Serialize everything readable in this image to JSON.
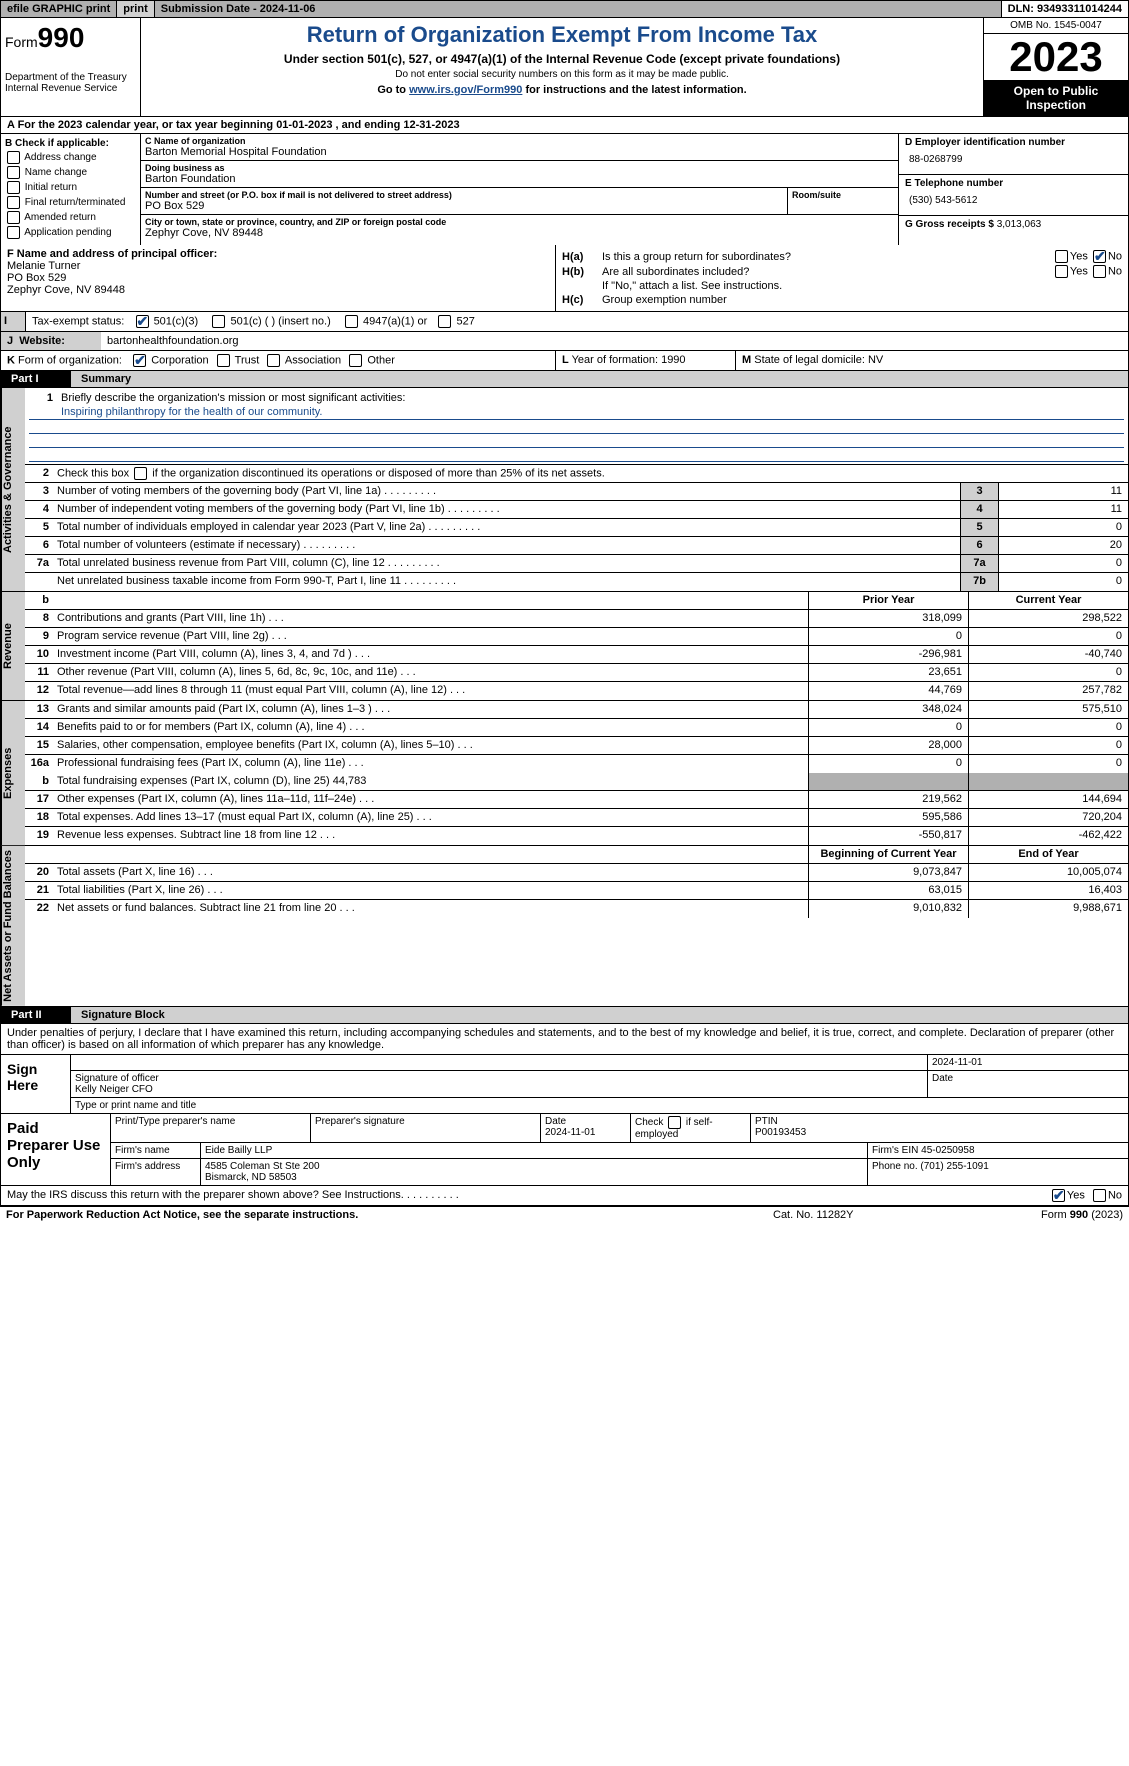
{
  "topbar": {
    "efile": "efile GRAPHIC print",
    "submission": "Submission Date - 2024-11-06",
    "dln": "DLN: 93493311014244"
  },
  "header": {
    "form": "Form",
    "num": "990",
    "title": "Return of Organization Exempt From Income Tax",
    "sub": "Under section 501(c), 527, or 4947(a)(1) of the Internal Revenue Code (except private foundations)",
    "ssn": "Do not enter social security numbers on this form as it may be made public.",
    "goto": "Go to ",
    "gotolink": "www.irs.gov/Form990",
    "goto2": " for instructions and the latest information.",
    "dept": "Department of the Treasury Internal Revenue Service",
    "omb": "OMB No. 1545-0047",
    "year": "2023",
    "open": "Open to Public Inspection"
  },
  "lineA": "A    For the 2023 calendar year, or tax year beginning 01-01-2023    , and ending 12-31-2023",
  "boxB": {
    "label": "B Check if applicable:",
    "opts": [
      "Address change",
      "Name change",
      "Initial return",
      "Final return/terminated",
      "Amended return",
      "Application pending"
    ]
  },
  "boxC": {
    "nameLab": "C Name of organization",
    "name": "Barton Memorial Hospital Foundation",
    "dbaLab": "Doing business as",
    "dba": "Barton Foundation",
    "addrLab": "Number and street (or P.O. box if mail is not delivered to street address)",
    "addr": "PO Box 529",
    "room": "Room/suite",
    "cityLab": "City or town, state or province, country, and ZIP or foreign postal code",
    "city": "Zephyr Cove, NV  89448"
  },
  "boxD": {
    "einLab": "D Employer identification number",
    "ein": "88-0268799",
    "telLab": "E Telephone number",
    "tel": "(530) 543-5612",
    "grossLab": "G Gross receipts $ ",
    "gross": "3,013,063"
  },
  "boxF": {
    "lab": "F  Name and address of principal officer:",
    "name": "Melanie Turner",
    "addr": "PO Box 529",
    "city": "Zephyr Cove, NV  89448"
  },
  "boxH": {
    "ha": "H(a)",
    "haTxt": "Is this a group return for subordinates?",
    "hb": "H(b)",
    "hbTxt": "Are all subordinates included?",
    "hbNote": "If \"No,\" attach a list. See instructions.",
    "hc": "H(c)",
    "hcTxt": "Group exemption number"
  },
  "rowI": {
    "lab": "I",
    "txt": "Tax-exempt status:",
    "o1": "501(c)(3)",
    "o2": "501(c) (  ) (insert no.)",
    "o3": "4947(a)(1) or",
    "o4": "527"
  },
  "rowJ": {
    "lab": "J",
    "txt": "Website:",
    "val": "bartonhealthfoundation.org"
  },
  "rowK": {
    "lab": "K",
    "txt": "Form of organization:",
    "o1": "Corporation",
    "o2": "Trust",
    "o3": "Association",
    "o4": "Other"
  },
  "rowL": {
    "lab": "L",
    "txt": "Year of formation: 1990"
  },
  "rowM": {
    "lab": "M",
    "txt": "State of legal domicile: NV"
  },
  "part1": {
    "lbl": "Part I",
    "ttl": "Summary"
  },
  "gov": {
    "l1": "Briefly describe the organization's mission or most significant activities:",
    "mission": "Inspiring philanthropy for the health of our community.",
    "l2": "Check this box        if the organization discontinued its operations or disposed of more than 25% of its net assets.",
    "l3": "Number of voting members of the governing body (Part VI, line 1a)",
    "l3v": "11",
    "l4": "Number of independent voting members of the governing body (Part VI, line 1b)",
    "l4v": "11",
    "l5": "Total number of individuals employed in calendar year 2023 (Part V, line 2a)",
    "l5v": "0",
    "l6": "Total number of volunteers (estimate if necessary)",
    "l6v": "20",
    "l7a": "Total unrelated business revenue from Part VIII, column (C), line 12",
    "l7av": "0",
    "l7b": "Net unrelated business taxable income from Form 990-T, Part I, line 11",
    "l7bv": "0"
  },
  "revhdr": {
    "prior": "Prior Year",
    "current": "Current Year"
  },
  "rev": [
    {
      "n": "8",
      "t": "Contributions and grants (Part VIII, line 1h)",
      "p": "318,099",
      "c": "298,522"
    },
    {
      "n": "9",
      "t": "Program service revenue (Part VIII, line 2g)",
      "p": "0",
      "c": "0"
    },
    {
      "n": "10",
      "t": "Investment income (Part VIII, column (A), lines 3, 4, and 7d )",
      "p": "-296,981",
      "c": "-40,740"
    },
    {
      "n": "11",
      "t": "Other revenue (Part VIII, column (A), lines 5, 6d, 8c, 9c, 10c, and 11e)",
      "p": "23,651",
      "c": "0"
    },
    {
      "n": "12",
      "t": "Total revenue—add lines 8 through 11 (must equal Part VIII, column (A), line 12)",
      "p": "44,769",
      "c": "257,782"
    }
  ],
  "exp": [
    {
      "n": "13",
      "t": "Grants and similar amounts paid (Part IX, column (A), lines 1–3 )",
      "p": "348,024",
      "c": "575,510"
    },
    {
      "n": "14",
      "t": "Benefits paid to or for members (Part IX, column (A), line 4)",
      "p": "0",
      "c": "0"
    },
    {
      "n": "15",
      "t": "Salaries, other compensation, employee benefits (Part IX, column (A), lines 5–10)",
      "p": "28,000",
      "c": "0"
    },
    {
      "n": "16a",
      "t": "Professional fundraising fees (Part IX, column (A), line 11e)",
      "p": "0",
      "c": "0"
    }
  ],
  "exp16b": {
    "n": "b",
    "t": "Total fundraising expenses (Part IX, column (D), line 25) 44,783"
  },
  "exp2": [
    {
      "n": "17",
      "t": "Other expenses (Part IX, column (A), lines 11a–11d, 11f–24e)",
      "p": "219,562",
      "c": "144,694"
    },
    {
      "n": "18",
      "t": "Total expenses. Add lines 13–17 (must equal Part IX, column (A), line 25)",
      "p": "595,586",
      "c": "720,204"
    },
    {
      "n": "19",
      "t": "Revenue less expenses. Subtract line 18 from line 12",
      "p": "-550,817",
      "c": "-462,422"
    }
  ],
  "nethdr": {
    "begin": "Beginning of Current Year",
    "end": "End of Year"
  },
  "net": [
    {
      "n": "20",
      "t": "Total assets (Part X, line 16)",
      "p": "9,073,847",
      "c": "10,005,074"
    },
    {
      "n": "21",
      "t": "Total liabilities (Part X, line 26)",
      "p": "63,015",
      "c": "16,403"
    },
    {
      "n": "22",
      "t": "Net assets or fund balances. Subtract line 21 from line 20",
      "p": "9,010,832",
      "c": "9,988,671"
    }
  ],
  "part2": {
    "lbl": "Part II",
    "ttl": "Signature Block"
  },
  "perjury": "Under penalties of perjury, I declare that I have examined this return, including accompanying schedules and statements, and to the best of my knowledge and belief, it is true, correct, and complete. Declaration of preparer (other than officer) is based on all information of which preparer has any knowledge.",
  "sign": {
    "lab": "Sign Here",
    "date": "2024-11-01",
    "sigLab": "Signature of officer",
    "name": "Kelly Neiger CFO",
    "typeLab": "Type or print name and title",
    "dateLab": "Date"
  },
  "paid": {
    "lab": "Paid Preparer Use Only",
    "prepName": "Print/Type preparer's name",
    "prepSig": "Preparer's signature",
    "dateLab": "Date",
    "date": "2024-11-01",
    "checkLab": "Check         if self-employed",
    "ptinLab": "PTIN",
    "ptin": "P00193453",
    "firmLab": "Firm's name",
    "firm": "Eide Bailly LLP",
    "einLab": "Firm's EIN",
    "ein": "45-0250958",
    "addrLab": "Firm's address",
    "addr1": "4585 Coleman St Ste 200",
    "addr2": "Bismarck, ND  58503",
    "phoneLab": "Phone no.",
    "phone": "(701) 255-1091"
  },
  "discuss": "May the IRS discuss this return with the preparer shown above? See Instructions.",
  "footer": {
    "left": "For Paperwork Reduction Act Notice, see the separate instructions.",
    "mid": "Cat. No. 11282Y",
    "right": "Form 990 (2023)"
  },
  "sideLabels": {
    "gov": "Activities & Governance",
    "rev": "Revenue",
    "exp": "Expenses",
    "net": "Net Assets or Fund Balances"
  }
}
